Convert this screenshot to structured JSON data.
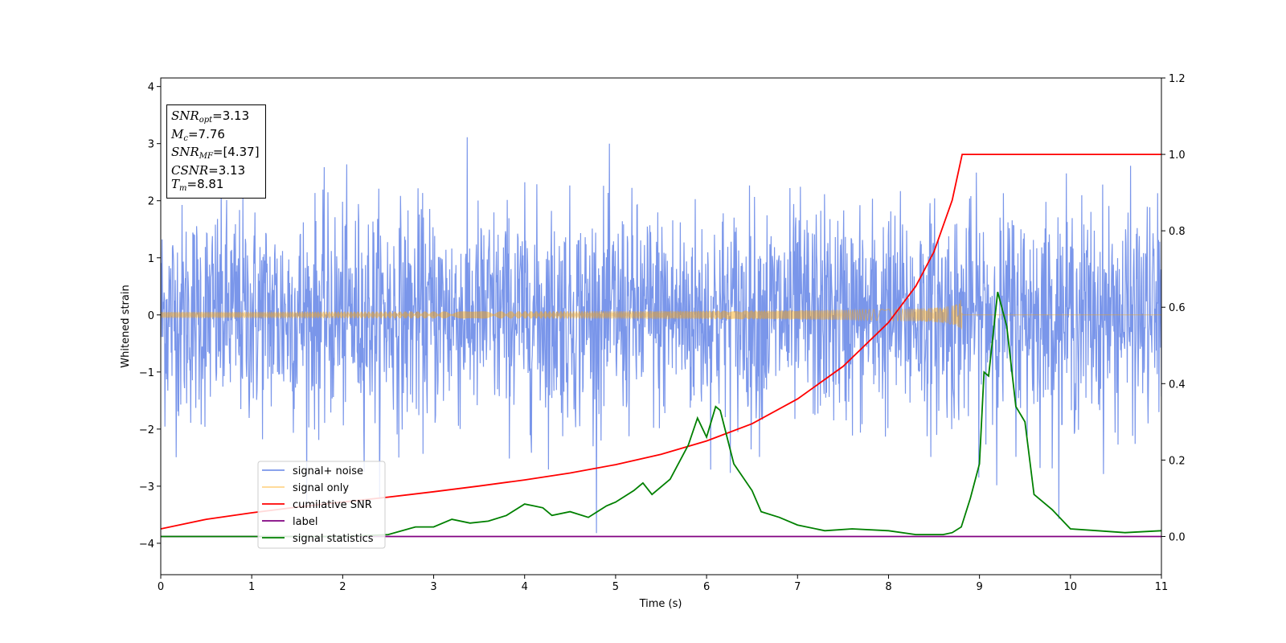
{
  "chart_data": {
    "type": "line",
    "xlabel": "Time (s)",
    "ylabel": "Whitened strain",
    "xlim": [
      0,
      11
    ],
    "ylim": [
      -4.55,
      4.15
    ],
    "y2lim": [
      -0.1,
      1.2
    ],
    "x_ticks": [
      0,
      1,
      2,
      3,
      4,
      5,
      6,
      7,
      8,
      9,
      10,
      11
    ],
    "y_ticks": [
      -4,
      -3,
      -2,
      -1,
      0,
      1,
      2,
      3,
      4
    ],
    "y2_ticks": [
      0.0,
      0.2,
      0.4,
      0.6,
      0.8,
      1.0,
      1.2
    ],
    "grid": false,
    "legend_position": "lower-left",
    "colors": {
      "signal_noise": "#4169e1",
      "signal_only": "#ffa500",
      "cumulative_snr": "#ff0000",
      "label": "#800080",
      "signal_statistics": "#008000"
    },
    "series": [
      {
        "name": "signal+ noise",
        "axis": "left",
        "description_of_shape": "noise",
        "envelope_typical": [
          -2.5,
          2.5
        ]
      },
      {
        "name": "signal only",
        "axis": "left",
        "chirp_end_time": 8.81,
        "chirp_peak_amplitude": 0.38
      },
      {
        "name": "cumilative SNR",
        "axis": "right",
        "x": [
          0,
          0.5,
          1,
          1.5,
          2,
          2.5,
          3,
          3.5,
          4,
          4.5,
          5,
          5.5,
          6,
          6.5,
          7,
          7.5,
          8,
          8.3,
          8.5,
          8.7,
          8.81,
          11
        ],
        "y": [
          0.02,
          0.045,
          0.062,
          0.077,
          0.09,
          0.103,
          0.117,
          0.132,
          0.148,
          0.166,
          0.188,
          0.215,
          0.25,
          0.295,
          0.36,
          0.445,
          0.56,
          0.655,
          0.745,
          0.88,
          1.0,
          1.0
        ]
      },
      {
        "name": "label",
        "axis": "right",
        "x": [
          0,
          11
        ],
        "y": [
          0.0,
          0.0
        ]
      },
      {
        "name": "signal statistics",
        "axis": "right",
        "x": [
          0,
          1,
          2,
          2.5,
          2.8,
          3.0,
          3.2,
          3.4,
          3.6,
          3.8,
          4.0,
          4.1,
          4.2,
          4.3,
          4.5,
          4.7,
          4.9,
          5.0,
          5.2,
          5.3,
          5.4,
          5.5,
          5.6,
          5.8,
          5.9,
          6.0,
          6.1,
          6.15,
          6.3,
          6.5,
          6.6,
          6.8,
          7.0,
          7.3,
          7.6,
          8.0,
          8.3,
          8.6,
          8.7,
          8.8,
          8.9,
          9.0,
          9.05,
          9.1,
          9.2,
          9.3,
          9.4,
          9.5,
          9.6,
          9.8,
          10.0,
          10.3,
          10.6,
          11.0
        ],
        "y": [
          0.0,
          0.0,
          0.0,
          0.005,
          0.025,
          0.025,
          0.045,
          0.035,
          0.04,
          0.055,
          0.085,
          0.08,
          0.075,
          0.055,
          0.065,
          0.05,
          0.08,
          0.09,
          0.12,
          0.14,
          0.11,
          0.13,
          0.15,
          0.24,
          0.31,
          0.26,
          0.34,
          0.33,
          0.19,
          0.12,
          0.065,
          0.05,
          0.03,
          0.015,
          0.02,
          0.015,
          0.005,
          0.005,
          0.01,
          0.025,
          0.1,
          0.19,
          0.43,
          0.42,
          0.64,
          0.55,
          0.34,
          0.3,
          0.11,
          0.07,
          0.02,
          0.015,
          0.01,
          0.015
        ]
      }
    ],
    "annotation": [
      "SNR_opt=3.13",
      "M_c=7.76",
      "SNR_MF=[4.37]",
      "CSNR=3.13",
      "T_m=8.81"
    ]
  },
  "info": {
    "snr_opt_sym": "SNR",
    "snr_opt_sub": "opt",
    "snr_opt_val": "=3.13",
    "mc_sym": "M",
    "mc_sub": "c",
    "mc_val": "=7.76",
    "snr_mf_sym": "SNR",
    "snr_mf_sub": "MF",
    "snr_mf_val": "=[4.37]",
    "csnr_sym": "CSNR",
    "csnr_val": "=3.13",
    "tm_sym": "T",
    "tm_sub": "m",
    "tm_val": "=8.81"
  }
}
